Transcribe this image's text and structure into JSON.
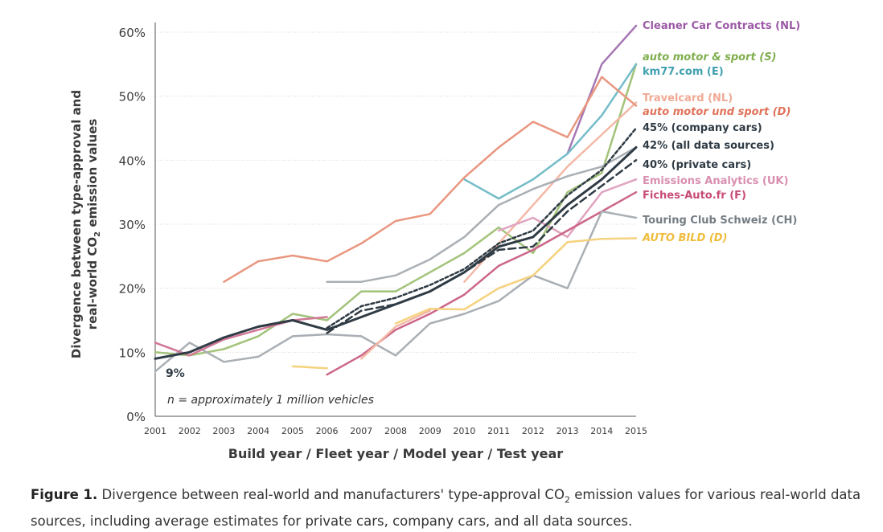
{
  "chart_data": {
    "type": "line",
    "title": "",
    "xlabel": "Build year / Fleet year / Model year / Test year",
    "ylabel_line1": "Divergence between type-approval and",
    "ylabel_line2": "real-world CO",
    "ylabel_sub": "2",
    "ylabel_line2_end": " emission values",
    "ylim": [
      0,
      60
    ],
    "yticks": [
      "0%",
      "10%",
      "20%",
      "30%",
      "40%",
      "50%",
      "60%"
    ],
    "categories": [
      "2001",
      "2002",
      "2003",
      "2004",
      "2005",
      "2006",
      "2007",
      "2008",
      "2009",
      "2010",
      "2011",
      "2012",
      "2013",
      "2014",
      "2015"
    ],
    "start_annotation": "9%",
    "note": "n = approximately 1 million vehicles",
    "series": [
      {
        "name": "Cleaner Car Contracts (NL)",
        "label_color": "#9b59a6",
        "italic": false,
        "bold": false,
        "color": "#a678b4",
        "dash": "",
        "width": 2.5,
        "values": [
          null,
          null,
          null,
          null,
          null,
          null,
          null,
          null,
          null,
          null,
          null,
          null,
          41,
          55,
          61
        ]
      },
      {
        "name": "auto motor & sport (S)",
        "label_color": "#7fae4e",
        "italic": true,
        "bold": false,
        "color": "#a3c37a",
        "dash": "",
        "width": 2.5,
        "values": [
          10,
          9.5,
          10.5,
          12.5,
          16,
          15,
          19.5,
          19.5,
          22.5,
          25.5,
          29.5,
          25.5,
          35,
          38,
          55
        ]
      },
      {
        "name": "km77.com (E)",
        "label_color": "#3fa0b0",
        "italic": false,
        "bold": false,
        "color": "#74bcc8",
        "dash": "",
        "width": 2.5,
        "values": [
          null,
          null,
          null,
          null,
          null,
          null,
          null,
          null,
          null,
          37,
          34,
          37,
          41,
          47,
          55
        ]
      },
      {
        "name": "Travelcard (NL)",
        "label_color": "#f0a993",
        "italic": false,
        "bold": false,
        "color": "#f3b8a6",
        "dash": "",
        "width": 2.5,
        "values": [
          null,
          null,
          null,
          null,
          null,
          null,
          null,
          null,
          null,
          21,
          27,
          33,
          39,
          44,
          49
        ]
      },
      {
        "name": "auto motor und sport (D)",
        "label_color": "#e0735a",
        "italic": true,
        "bold": false,
        "color": "#e9967f",
        "dash": "",
        "width": 2.5,
        "values": [
          null,
          null,
          21,
          24.2,
          25.1,
          24.2,
          27,
          30.5,
          31.6,
          37.3,
          42,
          46,
          43.6,
          53,
          48.5
        ]
      },
      {
        "name": "45% (company cars)",
        "label_color": "#2f3b45",
        "italic": false,
        "bold": true,
        "color": "#2f3b45",
        "dash": "4 3",
        "width": 2.5,
        "values": [
          null,
          null,
          null,
          null,
          null,
          13.8,
          17.2,
          18.5,
          20.5,
          23,
          27,
          29,
          34.5,
          38.5,
          45
        ]
      },
      {
        "name": "42% (all data sources)",
        "label_color": "#2f3b45",
        "italic": false,
        "bold": true,
        "color": "#2f3b45",
        "dash": "",
        "width": 3,
        "values": [
          9,
          10,
          12.3,
          14,
          15,
          13.5,
          15.5,
          17.5,
          19.5,
          22.5,
          26.5,
          28,
          33,
          37,
          42
        ]
      },
      {
        "name": "40% (private cars)",
        "label_color": "#2f3b45",
        "italic": false,
        "bold": true,
        "color": "#2f3b45",
        "dash": "9 5",
        "width": 2.5,
        "values": [
          null,
          null,
          null,
          null,
          null,
          13,
          16.5,
          17.5,
          19.5,
          22.5,
          26,
          26.5,
          32,
          36,
          40
        ]
      },
      {
        "name": "Emissions Analytics (UK)",
        "label_color": "#d98fb0",
        "italic": false,
        "bold": false,
        "color": "#e0a3bf",
        "dash": "",
        "width": 2.5,
        "values": [
          null,
          null,
          null,
          null,
          null,
          null,
          null,
          null,
          null,
          null,
          29,
          31,
          28,
          35,
          37
        ]
      },
      {
        "name": "Fiches-Auto.fr (F)",
        "label_color": "#c84b74",
        "italic": false,
        "bold": false,
        "color": "#cc6689",
        "dash": "",
        "width": 2.5,
        "values": [
          null,
          null,
          null,
          null,
          null,
          6.5,
          9.5,
          13.5,
          16,
          19,
          23.5,
          26,
          29,
          32,
          35
        ]
      },
      {
        "name": "Touring Club Schweiz (CH)",
        "label_color": "#757d84",
        "italic": false,
        "bold": false,
        "color": "#a9afb4",
        "dash": "",
        "width": 2.5,
        "values": [
          7,
          11.5,
          8.5,
          9.3,
          12.5,
          12.8,
          12.5,
          9.5,
          14.5,
          16,
          18,
          22,
          20,
          32,
          31
        ]
      },
      {
        "name": "AUTO BILD (D)",
        "label_color": "#f0bc3c",
        "italic": true,
        "bold": false,
        "color": "#f5d27e",
        "dash": "",
        "width": 2.5,
        "values": [
          null,
          null,
          null,
          null,
          7.8,
          7.5,
          null,
          14.5,
          16.8,
          16.7,
          20,
          22,
          27.2,
          27.7,
          27.8
        ]
      },
      {
        "name": "",
        "label_color": "#e9967f",
        "italic": false,
        "bold": false,
        "color": "#f3b8a6",
        "dash": "",
        "width": 2.5,
        "values": [
          null,
          null,
          null,
          null,
          null,
          null,
          9,
          14,
          16.5,
          null,
          null,
          null,
          null,
          null,
          null
        ]
      },
      {
        "name": "",
        "label_color": "#cc6689",
        "italic": false,
        "bold": false,
        "color": "#d07896",
        "dash": "",
        "width": 2.5,
        "values": [
          11.5,
          9.5,
          12,
          13.5,
          15,
          15.5,
          null,
          null,
          null,
          null,
          null,
          null,
          null,
          null,
          null
        ]
      },
      {
        "name": "",
        "label_color": "#888",
        "italic": false,
        "bold": false,
        "color": "#a9afb4",
        "dash": "",
        "width": 2.5,
        "values": [
          null,
          null,
          null,
          null,
          null,
          21,
          21,
          22,
          24.5,
          28,
          33,
          35.5,
          37.5,
          39,
          42
        ]
      }
    ]
  },
  "caption": {
    "figure_label": "Figure 1.",
    "text_before_sub": " Divergence between real-world and manufacturers' type-approval CO",
    "sub": "2",
    "text_after_sub": " emission values for various real-world data sources, including average estimates for private cars, company cars, and all data sources."
  }
}
